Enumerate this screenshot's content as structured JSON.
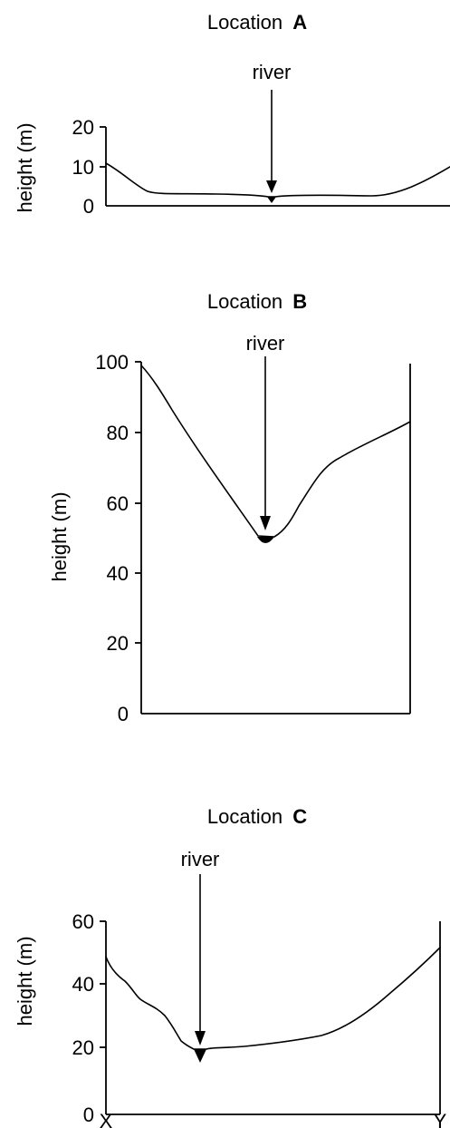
{
  "panels": [
    {
      "title_prefix": "Location",
      "title_letter": "A",
      "river_label": "river",
      "ylabel": "height (m)",
      "ticks": [
        "0",
        "10",
        "20"
      ]
    },
    {
      "title_prefix": "Location",
      "title_letter": "B",
      "river_label": "river",
      "ylabel": "height (m)",
      "ticks": [
        "0",
        "20",
        "40",
        "60",
        "80",
        "100"
      ]
    },
    {
      "title_prefix": "Location",
      "title_letter": "C",
      "river_label": "river",
      "ylabel": "height (m)",
      "ticks": [
        "0",
        "20",
        "40",
        "60"
      ]
    }
  ],
  "endpoints": {
    "start": "X",
    "end": "Y"
  },
  "colors": {
    "ink": "#000000",
    "background": "#ffffff"
  }
}
